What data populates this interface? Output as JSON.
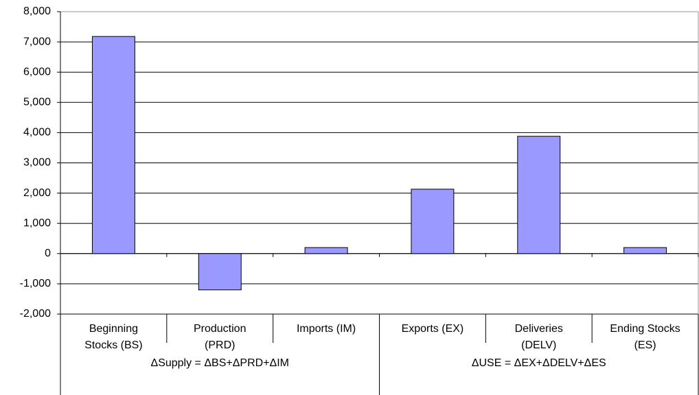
{
  "chart_data": {
    "type": "bar",
    "categories": [
      "Beginning\nStocks (BS)",
      "Production\n(PRD)",
      "Imports (IM)",
      "Exports (EX)",
      "Deliveries\n(DELV)",
      "Ending Stocks\n(ES)"
    ],
    "groups": [
      {
        "label": "ΔSupply = ΔBS+ΔPRD+ΔIM",
        "span": 3
      },
      {
        "label": "ΔUSE = ΔEX+ΔDELV+ΔES",
        "span": 3
      }
    ],
    "values": [
      7180,
      -1200,
      200,
      2130,
      3880,
      200
    ],
    "color": "#9999ff",
    "ylim": [
      -2000,
      8000
    ],
    "yticks": [
      {
        "value": -2000,
        "label": "-2,000"
      },
      {
        "value": -1000,
        "label": "-1,000"
      },
      0,
      {
        "value": 1000,
        "label": "1,000"
      },
      {
        "value": 2000,
        "label": "2,000"
      },
      {
        "value": 3000,
        "label": "3,000"
      },
      {
        "value": 4000,
        "label": "4,000"
      },
      {
        "value": 5000,
        "label": "5,000"
      },
      {
        "value": 6000,
        "label": "6,000"
      },
      {
        "value": 7000,
        "label": "7,000"
      },
      {
        "value": 8000,
        "label": "8,000"
      }
    ],
    "grid": true
  }
}
